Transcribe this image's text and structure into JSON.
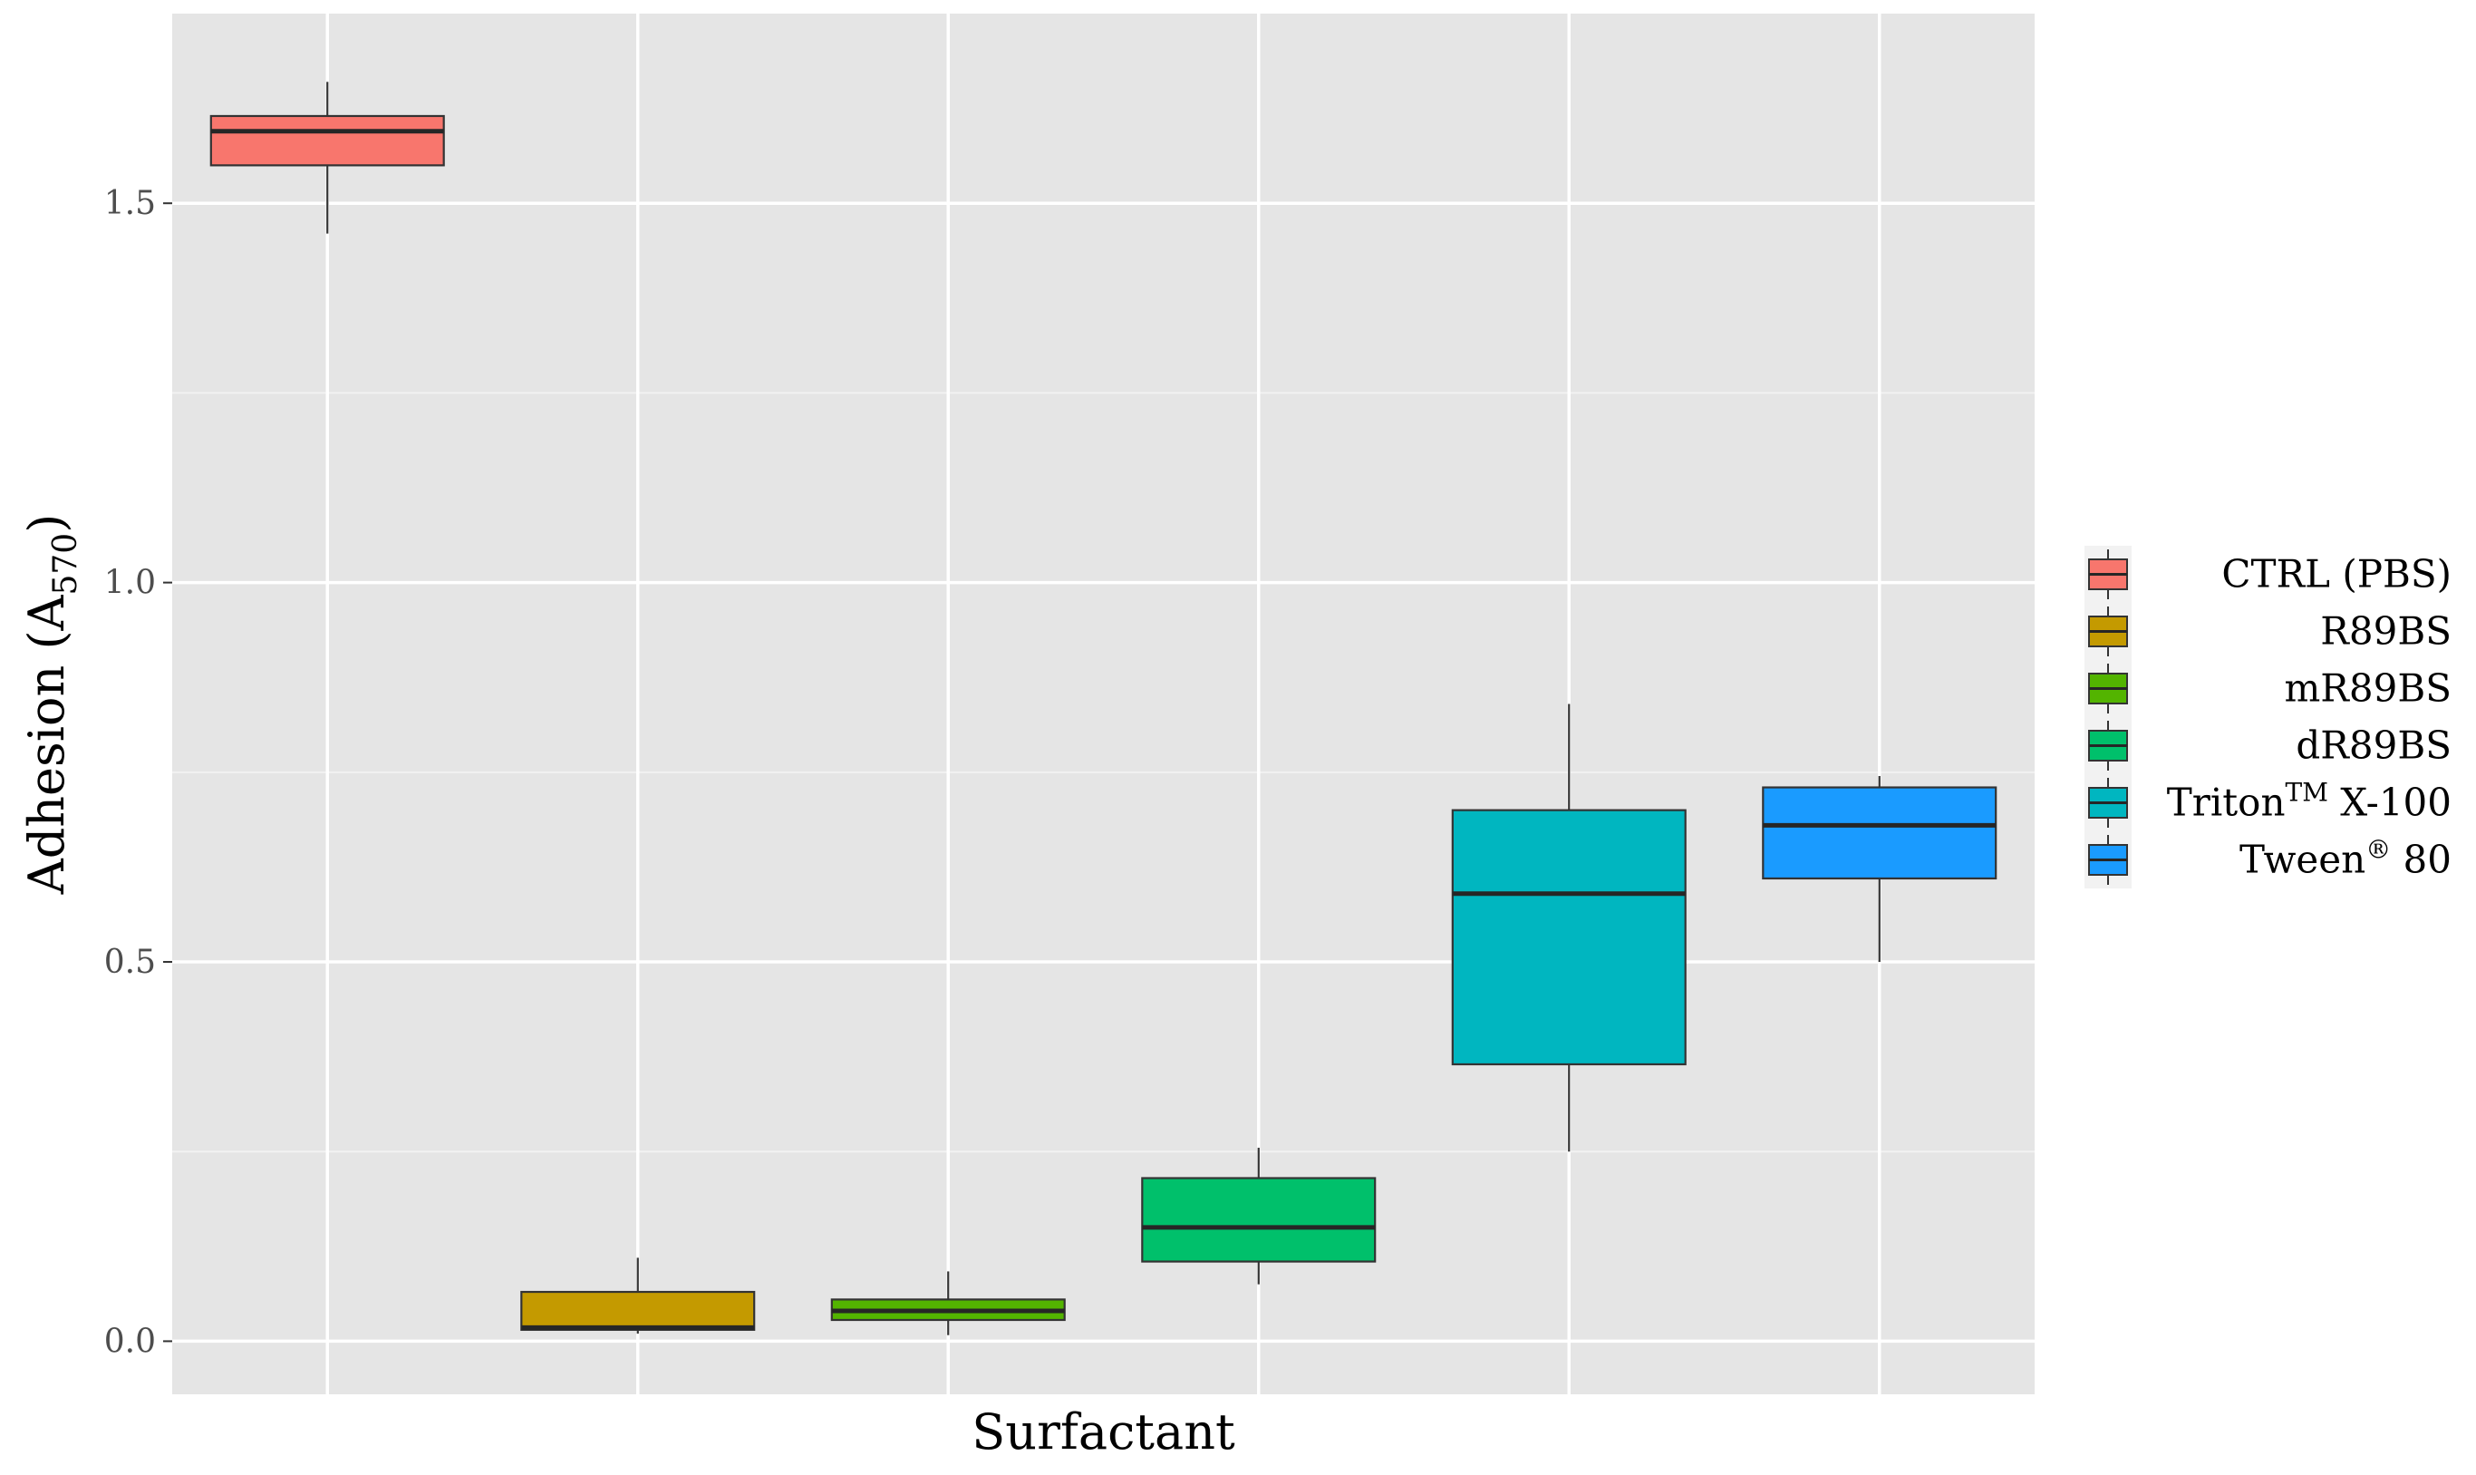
{
  "chart_data": {
    "type": "boxplot",
    "xlabel": "Surfactant",
    "ylabel": {
      "main": "Adhesion (A",
      "sub": "570",
      "end": ")"
    },
    "ylim": [
      -0.07,
      1.75
    ],
    "yticks": [
      0.0,
      0.5,
      1.0,
      1.5
    ],
    "ytick_labels": [
      "0.0",
      "0.5",
      "1.0",
      "1.5"
    ],
    "grid": true,
    "legend_position": "right",
    "series": [
      {
        "name": "CTRL (PBS)",
        "legend": {
          "main": "CTRL (PBS)",
          "sup": "",
          "rest": ""
        },
        "color": "#F8766D",
        "whisker_low": 1.46,
        "q1": 1.55,
        "median": 1.595,
        "q3": 1.615,
        "whisker_high": 1.66
      },
      {
        "name": "R89BS",
        "legend": {
          "main": "R89BS",
          "sup": "",
          "rest": ""
        },
        "color": "#C49A00",
        "whisker_low": 0.01,
        "q1": 0.015,
        "median": 0.018,
        "q3": 0.065,
        "whisker_high": 0.11
      },
      {
        "name": "mR89BS",
        "legend": {
          "main": "mR89BS",
          "sup": "",
          "rest": ""
        },
        "color": "#53B400",
        "whisker_low": 0.008,
        "q1": 0.028,
        "median": 0.04,
        "q3": 0.055,
        "whisker_high": 0.092
      },
      {
        "name": "dR89BS",
        "legend": {
          "main": "dR89BS",
          "sup": "",
          "rest": ""
        },
        "color": "#00C06B",
        "whisker_low": 0.075,
        "q1": 0.105,
        "median": 0.15,
        "q3": 0.215,
        "whisker_high": 0.255
      },
      {
        "name": "Triton™ X-100",
        "legend": {
          "main": "Triton",
          "sup": "TM",
          "rest": " X-100"
        },
        "color": "#00B6C0",
        "whisker_low": 0.25,
        "q1": 0.365,
        "median": 0.59,
        "q3": 0.7,
        "whisker_high": 0.84
      },
      {
        "name": "Tween® 80",
        "legend": {
          "main": "Tween",
          "sup": "®",
          "rest": " 80"
        },
        "color": "#1A9BFF",
        "whisker_low": 0.5,
        "q1": 0.61,
        "median": 0.68,
        "q3": 0.73,
        "whisker_high": 0.745
      }
    ]
  }
}
